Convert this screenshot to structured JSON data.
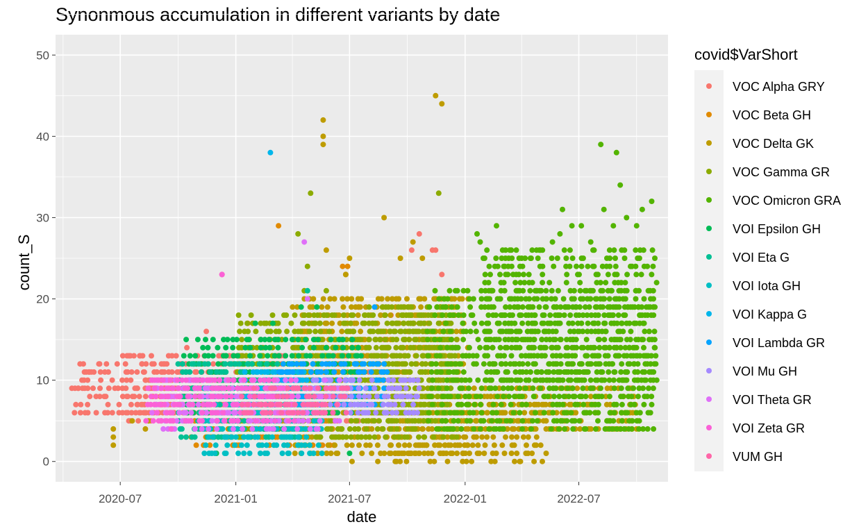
{
  "chart_data": {
    "type": "scatter",
    "title": "Synonmous accumulation in different variants by date",
    "xlabel": "date",
    "ylabel": "count_S",
    "xlim": [
      "2020-03-20",
      "2022-11-20"
    ],
    "ylim": [
      -2.5,
      52.5
    ],
    "x_ticks": [
      "2020-07",
      "2021-01",
      "2021-07",
      "2022-01",
      "2022-07"
    ],
    "y_ticks": [
      0,
      10,
      20,
      30,
      40,
      50
    ],
    "grid": true,
    "panel_background": "#EBEBEB",
    "legend": {
      "title": "covid$VarShort",
      "position": "right"
    },
    "series": [
      {
        "name": "VOC Alpha GRY",
        "color": "#F8766D",
        "bands": [
          [
            "2020-07-10",
            "2021-08-20",
            5,
            13
          ],
          [
            "2020-04-15",
            "2020-12-20",
            6,
            12
          ]
        ],
        "points": [
          [
            "2020-04-15",
            9
          ],
          [
            "2020-04-25",
            9
          ],
          [
            "2020-05-01",
            10
          ],
          [
            "2020-05-05",
            11
          ],
          [
            "2020-05-12",
            11
          ],
          [
            "2020-05-20",
            11
          ],
          [
            "2020-05-28",
            12
          ],
          [
            "2020-05-10",
            7
          ],
          [
            "2020-07-05",
            13
          ],
          [
            "2020-07-15",
            13
          ],
          [
            "2020-08-01",
            13
          ],
          [
            "2020-10-15",
            14
          ],
          [
            "2020-11-15",
            16
          ],
          [
            "2020-12-10",
            23
          ],
          [
            "2021-10-08",
            26
          ],
          [
            "2021-10-20",
            28
          ],
          [
            "2021-11-10",
            26
          ],
          [
            "2021-11-15",
            26
          ],
          [
            "2021-11-25",
            23
          ],
          [
            "2021-09-05",
            18
          ],
          [
            "2021-07-15",
            19
          ],
          [
            "2021-08-25",
            15
          ]
        ]
      },
      {
        "name": "VOC Beta GH",
        "color": "#E18A00",
        "bands": [
          [
            "2020-10-20",
            "2021-06-10",
            2,
            8
          ]
        ],
        "points": [
          [
            "2021-03-10",
            29
          ],
          [
            "2021-06-20",
            24
          ],
          [
            "2021-06-28",
            24
          ],
          [
            "2021-06-25",
            23
          ],
          [
            "2021-01-20",
            17
          ],
          [
            "2021-04-20",
            16
          ]
        ]
      },
      {
        "name": "VOC Delta GK",
        "color": "#BE9C00",
        "bands": [
          [
            "2021-04-01",
            "2022-01-05",
            1,
            20
          ],
          [
            "2021-09-01",
            "2022-05-15",
            0,
            8
          ],
          [
            "2022-01-01",
            "2022-10-01",
            4,
            9
          ]
        ],
        "points": [
          [
            "2021-05-20",
            42
          ],
          [
            "2021-05-20",
            40
          ],
          [
            "2021-05-20",
            39
          ],
          [
            "2021-11-15",
            45
          ],
          [
            "2021-11-25",
            44
          ],
          [
            "2021-05-25",
            26
          ],
          [
            "2021-07-01",
            25
          ],
          [
            "2021-08-25",
            30
          ],
          [
            "2021-09-20",
            25
          ],
          [
            "2021-10-10",
            27
          ],
          [
            "2021-10-25",
            25
          ],
          [
            "2021-06-25",
            23
          ],
          [
            "2021-12-10",
            20
          ],
          [
            "2022-05-10",
            1
          ],
          [
            "2021-07-05",
            0
          ],
          [
            "2021-08-15",
            0
          ],
          [
            "2022-08-01",
            4
          ],
          [
            "2022-08-15",
            4
          ],
          [
            "2022-09-01",
            4
          ],
          [
            "2022-09-05",
            4
          ],
          [
            "2022-07-15",
            7
          ],
          [
            "2022-07-25",
            7
          ],
          [
            "2020-06-20",
            2
          ],
          [
            "2020-06-20",
            3
          ],
          [
            "2020-06-20",
            4
          ],
          [
            "2020-07-20",
            5
          ],
          [
            "2020-08-10",
            4
          ],
          [
            "2020-08-15",
            5
          ]
        ]
      },
      {
        "name": "VOC Gamma GR",
        "color": "#8CAB00",
        "bands": [
          [
            "2021-01-01",
            "2021-12-20",
            3,
            18
          ],
          [
            "2021-08-01",
            "2021-12-10",
            5,
            19
          ]
        ],
        "points": [
          [
            "2021-04-30",
            33
          ],
          [
            "2021-04-10",
            28
          ],
          [
            "2021-04-25",
            24
          ],
          [
            "2021-11-20",
            33
          ],
          [
            "2021-04-20",
            21
          ],
          [
            "2021-05-25",
            21
          ]
        ]
      },
      {
        "name": "VOC Omicron GRA",
        "color": "#53B400",
        "bands": [
          [
            "2021-11-01",
            "2022-10-30",
            4,
            21
          ],
          [
            "2022-02-01",
            "2022-10-30",
            10,
            26
          ]
        ],
        "points": [
          [
            "2022-02-20",
            29
          ],
          [
            "2022-03-05",
            24
          ],
          [
            "2022-04-01",
            25
          ],
          [
            "2022-04-15",
            25
          ],
          [
            "2022-05-01",
            26
          ],
          [
            "2022-05-20",
            27
          ],
          [
            "2022-06-01",
            28
          ],
          [
            "2022-06-05",
            31
          ],
          [
            "2022-06-20",
            29
          ],
          [
            "2022-07-05",
            29
          ],
          [
            "2022-07-20",
            27
          ],
          [
            "2022-08-05",
            39
          ],
          [
            "2022-08-10",
            31
          ],
          [
            "2022-08-25",
            29
          ],
          [
            "2022-08-30",
            38
          ],
          [
            "2022-09-05",
            34
          ],
          [
            "2022-09-15",
            30
          ],
          [
            "2022-10-01",
            29
          ],
          [
            "2022-10-10",
            31
          ],
          [
            "2022-10-25",
            32
          ],
          [
            "2022-10-25",
            7
          ],
          [
            "2022-10-20",
            9
          ],
          [
            "2022-01-20",
            28
          ],
          [
            "2022-01-25",
            27
          ],
          [
            "2022-01-30",
            25
          ],
          [
            "2022-08-20",
            5
          ],
          [
            "2022-07-10",
            4
          ]
        ]
      },
      {
        "name": "VOI Epsilon GH",
        "color": "#00BC56",
        "bands": [
          [
            "2020-10-10",
            "2021-07-20",
            6,
            15
          ]
        ],
        "points": [
          [
            "2021-02-01",
            17
          ],
          [
            "2021-03-01",
            17
          ],
          [
            "2021-04-15",
            19
          ],
          [
            "2021-05-10",
            19
          ],
          [
            "2020-12-01",
            1
          ],
          [
            "2021-07-01",
            1
          ]
        ]
      },
      {
        "name": "VOI Eta G",
        "color": "#00C094",
        "bands": [
          [
            "2020-10-01",
            "2021-04-15",
            3,
            12
          ]
        ],
        "points": [
          [
            "2021-04-25",
            21
          ]
        ]
      },
      {
        "name": "VOI Iota GH",
        "color": "#00BFC4",
        "bands": [
          [
            "2020-11-10",
            "2021-05-20",
            1,
            9
          ]
        ],
        "points": [
          [
            "2021-02-20",
            1
          ],
          [
            "2021-03-25",
            1
          ]
        ]
      },
      {
        "name": "VOI Kappa G",
        "color": "#00B6EB",
        "bands": [
          [
            "2021-01-15",
            "2021-05-01",
            7,
            11
          ]
        ],
        "points": [
          [
            "2021-02-25",
            38
          ]
        ]
      },
      {
        "name": "VOI Lambda GR",
        "color": "#06A4FF",
        "bands": [
          [
            "2021-03-01",
            "2021-09-01",
            7,
            12
          ]
        ],
        "points": [
          [
            "2021-08-10",
            19
          ]
        ]
      },
      {
        "name": "VOI Mu GH",
        "color": "#A58AFF",
        "bands": [
          [
            "2021-05-01",
            "2021-10-20",
            6,
            10
          ]
        ],
        "points": []
      },
      {
        "name": "VOI Theta GR",
        "color": "#DF70F8",
        "bands": [
          [
            "2020-08-20",
            "2021-06-15",
            4,
            10
          ]
        ],
        "points": [
          [
            "2021-04-20",
            27
          ],
          [
            "2021-04-25",
            20
          ]
        ]
      },
      {
        "name": "VOI Zeta GR",
        "color": "#FB61D7",
        "bands": [
          [
            "2020-08-10",
            "2021-04-01",
            5,
            10
          ]
        ],
        "points": [
          [
            "2020-12-10",
            23
          ],
          [
            "2020-09-20",
            4
          ]
        ]
      },
      {
        "name": "VUM GH",
        "color": "#FF66A8",
        "bands": [
          [
            "2021-01-10",
            "2021-07-01",
            6,
            9
          ]
        ],
        "points": []
      }
    ]
  }
}
